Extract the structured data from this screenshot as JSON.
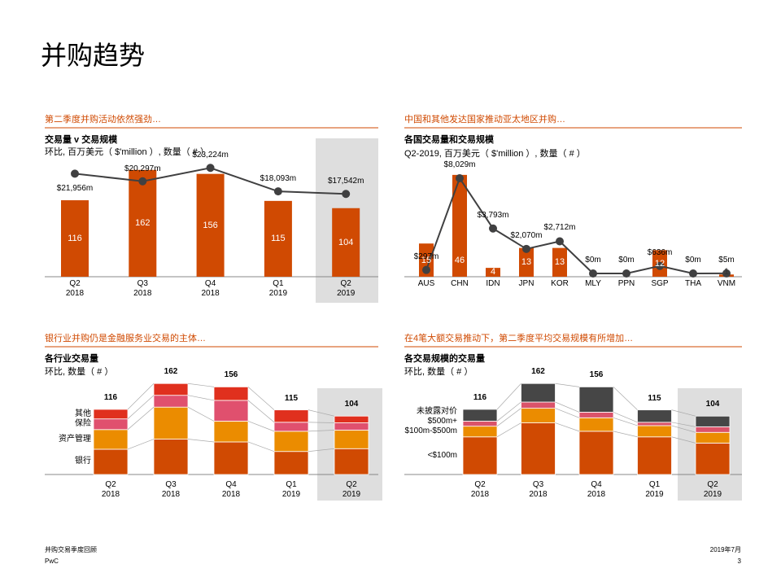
{
  "page_title": "并购趋势",
  "footer": {
    "report": "并购交易季度回顾",
    "company": "PwC",
    "date": "2019年7月",
    "page": "3"
  },
  "chart_data": [
    {
      "type": "bar-line",
      "header": "第二季度并购活动依然强劲…",
      "title": "交易量 v 交易规模",
      "subtitle": "环比, 百万美元（ $'million ）, 数量（ # ）",
      "categories": [
        "Q2\n2018",
        "Q3\n2018",
        "Q4\n2018",
        "Q1\n2019",
        "Q2\n2019"
      ],
      "series": [
        {
          "type": "bar",
          "color": "#d04a02",
          "values": [
            116,
            162,
            156,
            115,
            104
          ]
        },
        {
          "type": "line",
          "color": "#404041",
          "values": [
            21956,
            20297,
            23224,
            18093,
            17542
          ],
          "value_labels": [
            "$21,956m",
            "$20,297m",
            "$23,224m",
            "$18,093m",
            "$17,542m"
          ]
        }
      ]
    },
    {
      "type": "bar-line",
      "header": "中国和其他发达国家推动亚太地区并购…",
      "title": "各国交易量和交易规模",
      "subtitle": "Q2-2019, 百万美元（ $'million ）, 数量（ # ）",
      "categories": [
        "AUS",
        "CHN",
        "IDN",
        "JPN",
        "KOR",
        "MLY",
        "PPN",
        "SGP",
        "THA",
        "VNM"
      ],
      "series": [
        {
          "type": "bar",
          "color": "#d04a02",
          "values": [
            15,
            46,
            4,
            13,
            13,
            null,
            null,
            12,
            null,
            1
          ]
        },
        {
          "type": "line",
          "color": "#404041",
          "values": [
            297,
            8029,
            3793,
            2070,
            2712,
            0,
            0,
            636,
            0,
            5
          ],
          "value_labels": [
            "$297m",
            "$8,029m",
            "$3,793m",
            "$2,070m",
            "$2,712m",
            "$0m",
            "$0m",
            "$636m",
            "$0m",
            "$5m"
          ]
        }
      ]
    },
    {
      "type": "stacked-bar",
      "header": "银行业并购仍是金融服务业交易的主体…",
      "title": "各行业交易量",
      "subtitle": "环比, 数量（ # ）",
      "categories": [
        "Q2\n2018",
        "Q3\n2018",
        "Q4\n2018",
        "Q1\n2019",
        "Q2\n2019"
      ],
      "totals": [
        116,
        162,
        156,
        115,
        104
      ],
      "series": [
        {
          "name": "银行",
          "color": "#d04a02",
          "values": [
            45,
            63,
            58,
            41,
            46
          ]
        },
        {
          "name": "资产管理",
          "color": "#eb8c00",
          "values": [
            35,
            57,
            37,
            36,
            33
          ]
        },
        {
          "name": "保险",
          "color": "#e0506e",
          "values": [
            19,
            21,
            37,
            16,
            13
          ]
        },
        {
          "name": "其他",
          "color": "#e0301e",
          "values": [
            17,
            21,
            24,
            22,
            12
          ]
        }
      ]
    },
    {
      "type": "stacked-bar",
      "header": "在4笔大额交易推动下，第二季度平均交易规模有所增加…",
      "title": "各交易规模的交易量",
      "subtitle": "环比, 数量（ # ）",
      "categories": [
        "Q2\n2018",
        "Q3\n2018",
        "Q4\n2018",
        "Q1\n2019",
        "Q2\n2019"
      ],
      "totals": [
        116,
        162,
        156,
        115,
        104
      ],
      "series": [
        {
          "name": "<$100m",
          "color": "#d04a02",
          "values": [
            67,
            92,
            77,
            67,
            56
          ]
        },
        {
          "name": "$100m-$500m",
          "color": "#eb8c00",
          "values": [
            19,
            26,
            24,
            20,
            19
          ]
        },
        {
          "name": "$500m+",
          "color": "#db536a",
          "values": [
            9,
            11,
            10,
            6,
            10
          ]
        },
        {
          "name": "未披露对价",
          "color": "#464646",
          "values": [
            21,
            33,
            45,
            22,
            19
          ]
        }
      ]
    }
  ]
}
